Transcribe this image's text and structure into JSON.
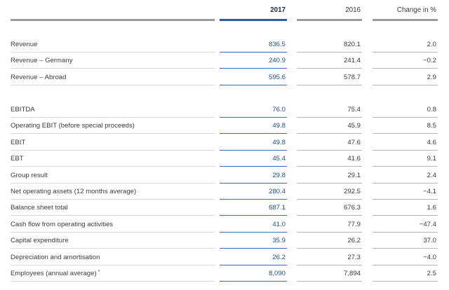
{
  "header": {
    "col_2017": "2017",
    "col_2016": "2016",
    "col_change": "Change in %"
  },
  "groups": [
    {
      "rows": [
        {
          "label": "Revenue",
          "v2017": "836.5",
          "v2016": "820.1",
          "change": "2.0"
        },
        {
          "label": "Revenue – Germany",
          "v2017": "240.9",
          "v2016": "241.4",
          "change": "−0.2"
        },
        {
          "label": "Revenue – Abroad",
          "v2017": "595.6",
          "v2016": "578.7",
          "change": "2.9"
        }
      ]
    },
    {
      "rows": [
        {
          "label": "EBITDA",
          "v2017": "76.0",
          "v2016": "75.4",
          "change": "0.8"
        },
        {
          "label": "Operating EBIT (before special proceeds)",
          "v2017": "49.8",
          "v2016": "45.9",
          "change": "8.5"
        },
        {
          "label": "EBIT",
          "v2017": "49.8",
          "v2016": "47.6",
          "change": "4.6"
        },
        {
          "label": "EBT",
          "v2017": "45.4",
          "v2016": "41.6",
          "change": "9.1"
        },
        {
          "label": "Group result",
          "v2017": "29.8",
          "v2016": "29.1",
          "change": "2.4"
        },
        {
          "label": "Net operating assets (12 months average)",
          "v2017": "280.4",
          "v2016": "292.5",
          "change": "−4.1"
        },
        {
          "label": "Balance sheet total",
          "v2017": "687.1",
          "v2016": "676.3",
          "change": "1.6"
        },
        {
          "label": "Cash flow from operating activities",
          "v2017": "41.0",
          "v2016": "77.9",
          "change": "−47.4"
        },
        {
          "label": "Capital expenditure",
          "v2017": "35.9",
          "v2016": "26.2",
          "change": "37.0"
        },
        {
          "label": "Depreciation and amortisation",
          "v2017": "26.2",
          "v2016": "27.3",
          "change": "−4.0"
        },
        {
          "label": "Employees (annual average)",
          "label_suffix": "*",
          "v2017": "8,090",
          "v2016": "7,894",
          "change": "2.5"
        }
      ]
    }
  ]
}
